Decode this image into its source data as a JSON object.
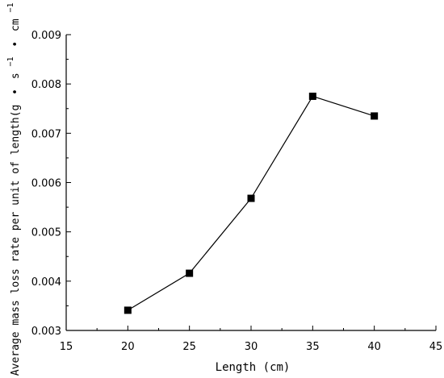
{
  "chart_data": {
    "type": "line",
    "title": "",
    "xlabel": "Length (cm)",
    "ylabel": {
      "base": "Average mass loss rate per unit of length(g",
      "bullet1": "•",
      "unit_s": "s",
      "exp1": "−1",
      "bullet2": "•",
      "unit_cm": "cm",
      "exp2": "−1",
      "close": ")"
    },
    "xlim": [
      15,
      45
    ],
    "ylim": [
      0.003,
      0.009
    ],
    "xticks": [
      "15",
      "20",
      "25",
      "30",
      "35",
      "40",
      "45"
    ],
    "yticks": [
      "0.003",
      "0.004",
      "0.005",
      "0.006",
      "0.007",
      "0.008",
      "0.009"
    ],
    "marker": "square",
    "line_color": "#000000",
    "grid": false,
    "series": [
      {
        "x": [
          20,
          25,
          30,
          35,
          40
        ],
        "values": [
          0.00341,
          0.00416,
          0.00568,
          0.00775,
          0.00735
        ]
      }
    ]
  }
}
